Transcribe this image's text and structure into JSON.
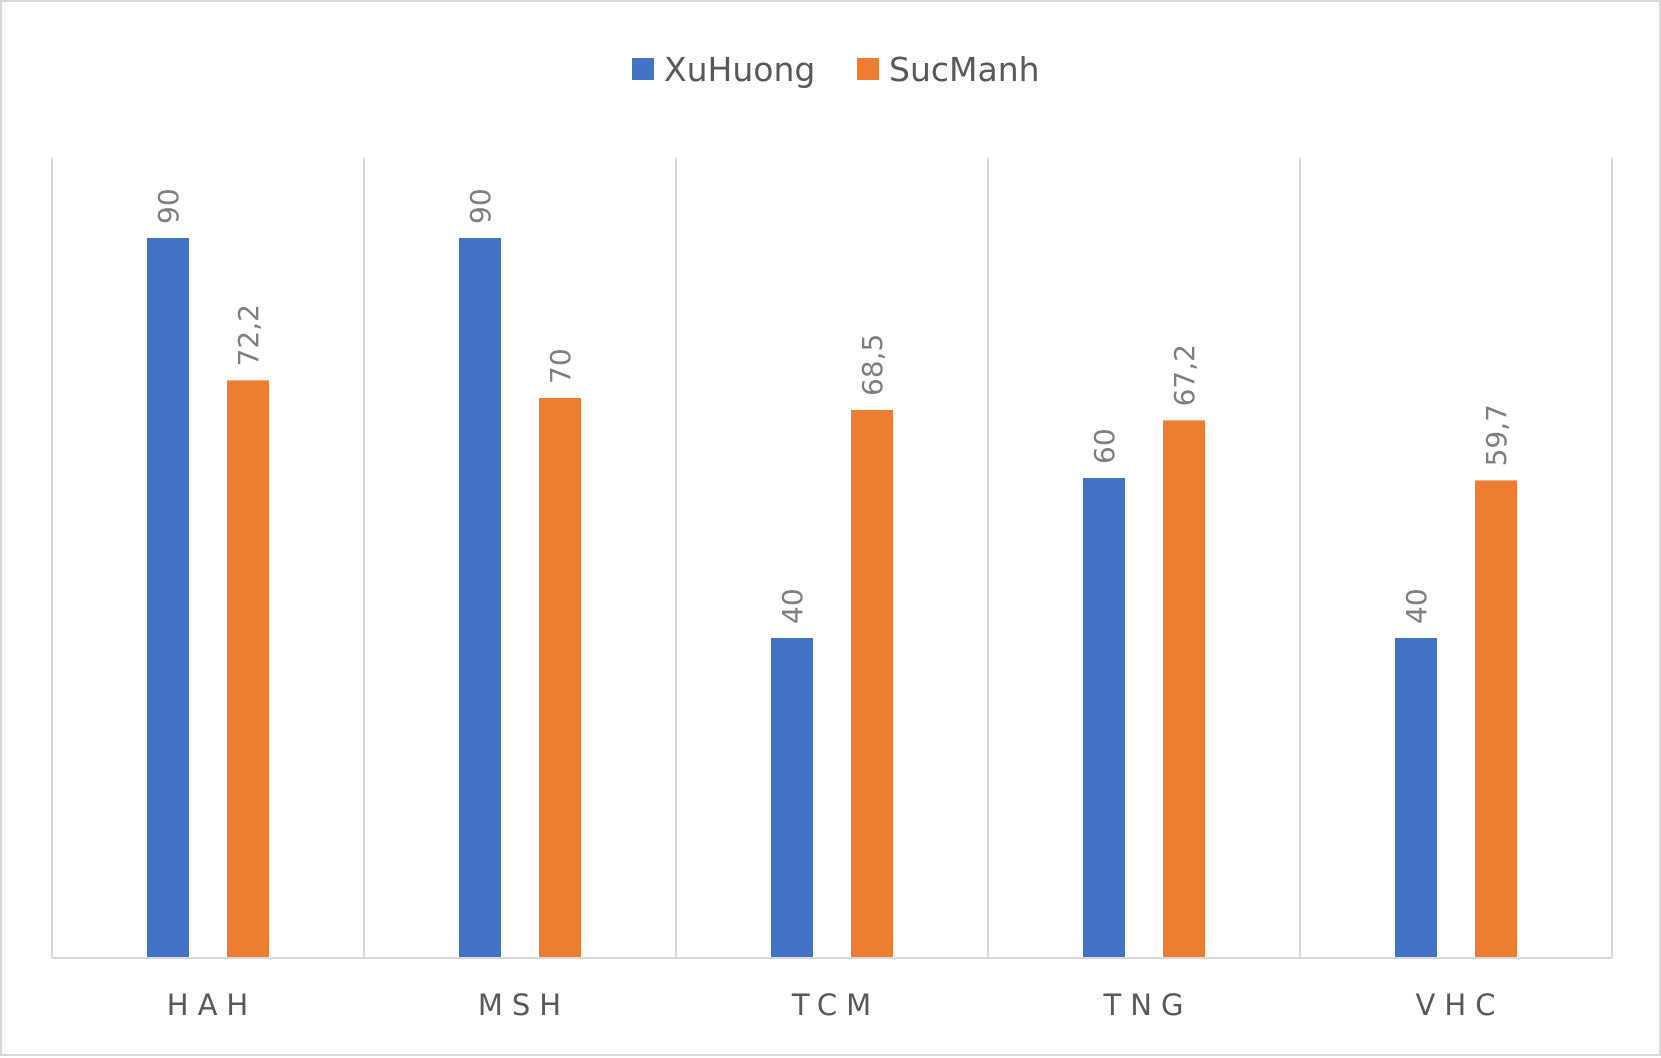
{
  "chart_data": {
    "type": "bar",
    "categories": [
      "HAH",
      "MSH",
      "TCM",
      "TNG",
      "VHC"
    ],
    "series": [
      {
        "name": "XuHuong",
        "color": "#4472c4",
        "values": [
          90,
          90,
          40,
          60,
          40
        ],
        "labels": [
          "90",
          "90",
          "40",
          "60",
          "40"
        ]
      },
      {
        "name": "SucManh",
        "color": "#ed7d31",
        "values": [
          72.2,
          70,
          68.5,
          67.2,
          59.7
        ],
        "labels": [
          "72,2",
          "70",
          "68,5",
          "67,2",
          "59,7"
        ]
      }
    ],
    "ylim": [
      0,
      100
    ],
    "grid": "vertical separators between categories",
    "legend_position": "top",
    "data_labels": "rotated vertical above bars",
    "title": "",
    "xlabel": "",
    "ylabel": ""
  }
}
